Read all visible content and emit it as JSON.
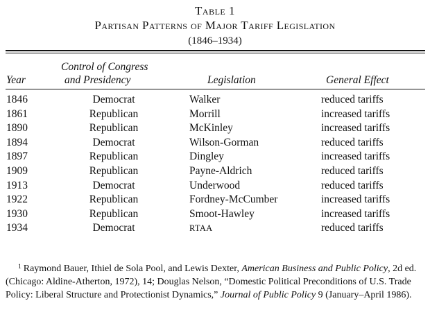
{
  "table": {
    "number": "Table 1",
    "title": "Partisan Patterns of Major Tariff Legislation",
    "years": "(1846–1934)"
  },
  "headers": {
    "year": "Year",
    "control_line1": "Control of Congress",
    "control_line2": "and Presidency",
    "legislation": "Legislation",
    "effect": "General Effect"
  },
  "rows": [
    {
      "year": "1846",
      "control": "Democrat",
      "legislation": "Walker",
      "effect": "reduced tariffs"
    },
    {
      "year": "1861",
      "control": "Republican",
      "legislation": "Morrill",
      "effect": "increased tariffs"
    },
    {
      "year": "1890",
      "control": "Republican",
      "legislation": "McKinley",
      "effect": "increased tariffs"
    },
    {
      "year": "1894",
      "control": "Democrat",
      "legislation": "Wilson-Gorman",
      "effect": "reduced tariffs"
    },
    {
      "year": "1897",
      "control": "Republican",
      "legislation": "Dingley",
      "effect": "increased tariffs"
    },
    {
      "year": "1909",
      "control": "Republican",
      "legislation": "Payne-Aldrich",
      "effect": "reduced tariffs"
    },
    {
      "year": "1913",
      "control": "Democrat",
      "legislation": "Underwood",
      "effect": "reduced tariffs"
    },
    {
      "year": "1922",
      "control": "Republican",
      "legislation": "Fordney-McCumber",
      "effect": "increased tariffs"
    },
    {
      "year": "1930",
      "control": "Republican",
      "legislation": "Smoot-Hawley",
      "effect": "increased tariffs"
    },
    {
      "year": "1934",
      "control": "Democrat",
      "legislation": "RTAA",
      "effect": "reduced tariffs"
    }
  ],
  "footnote": {
    "mark": "1",
    "part1": "Raymond Bauer, Ithiel de Sola Pool, and Lewis Dexter, ",
    "book_title": "American Business and Public Policy",
    "part2": ", 2d ed. (Chicago: Aldine-Atherton, 1972), 14; Douglas Nelson, “Domestic Political Preconditions of U.S. Trade Policy: Liberal Structure and Protectionist Dynamics,” ",
    "journal": "Journal of Public Policy",
    "part3": " 9 (January–April 1986)."
  }
}
